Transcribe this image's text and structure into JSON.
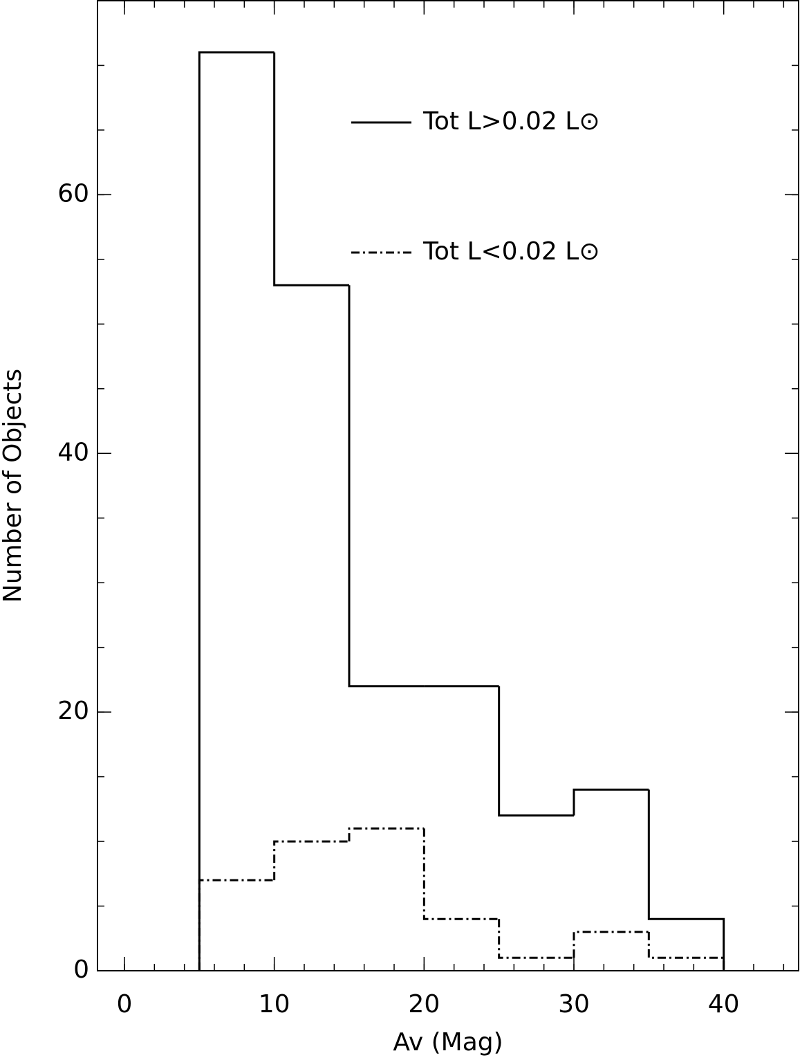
{
  "chart_data": {
    "type": "histogram",
    "xlabel": "Av (Mag)",
    "ylabel": "Number of Objects",
    "bins": [
      5,
      10,
      15,
      20,
      25,
      30,
      35,
      40
    ],
    "series": [
      {
        "name": "Tot L>0.02 L⊙",
        "color": "#000000",
        "linestyle": "solid",
        "values": [
          71,
          53,
          22,
          22,
          12,
          14,
          4
        ]
      },
      {
        "name": "Tot L<0.02 L⊙",
        "color": "#000000",
        "linestyle": "dashdot",
        "values": [
          7,
          10,
          11,
          4,
          1,
          3,
          1
        ]
      }
    ],
    "xlim": [
      -1.8,
      45
    ],
    "ylim": [
      0,
      75
    ],
    "xticks": [
      0,
      10,
      20,
      30,
      40
    ],
    "yticks": [
      0,
      20,
      40,
      60
    ],
    "xminorticks": [
      0,
      2,
      4,
      6,
      8,
      10,
      12,
      14,
      16,
      18,
      20,
      22,
      24,
      26,
      28,
      30,
      32,
      34,
      36,
      38,
      40,
      42,
      44
    ],
    "yminorticks": [
      0,
      5,
      10,
      15,
      20,
      25,
      30,
      35,
      40,
      45,
      50,
      55,
      60,
      65,
      70,
      75
    ]
  }
}
